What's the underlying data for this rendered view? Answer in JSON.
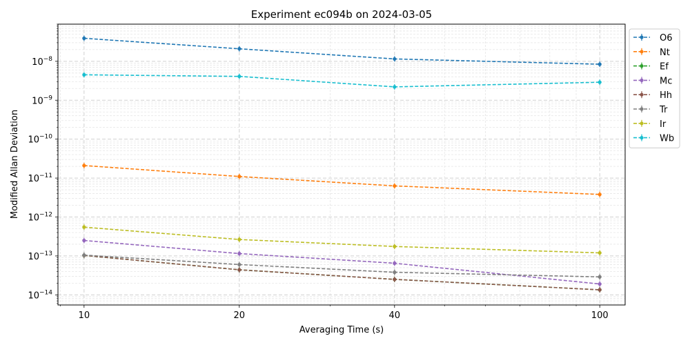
{
  "chart_data": {
    "type": "line",
    "title": "Experiment ec094b on 2024-03-05",
    "xlabel": "Averaging Time (s)",
    "ylabel": "Modified Allan Deviation",
    "x_scale": "log",
    "y_scale": "log",
    "x": [
      10,
      20,
      40,
      100
    ],
    "x_ticks": [
      10,
      20,
      40,
      100
    ],
    "x_tick_labels": [
      "10",
      "20",
      "40",
      "100"
    ],
    "xlim": [
      8.9,
      112
    ],
    "ylim": [
      5.5e-15,
      9e-08
    ],
    "y_ticks": [
      {
        "value": 1e-14,
        "base": "10",
        "exp": "−14"
      },
      {
        "value": 1e-13,
        "base": "10",
        "exp": "−13"
      },
      {
        "value": 1e-12,
        "base": "10",
        "exp": "−12"
      },
      {
        "value": 1e-11,
        "base": "10",
        "exp": "−11"
      },
      {
        "value": 1e-10,
        "base": "10",
        "exp": "−10"
      },
      {
        "value": 1e-09,
        "base": "10",
        "exp": "−9"
      },
      {
        "value": 1e-08,
        "base": "10",
        "exp": "−8"
      }
    ],
    "grid": true,
    "legend_position": "outside-right",
    "series": [
      {
        "name": "O6",
        "color": "#1f77b4",
        "values": [
          3.9e-08,
          2.1e-08,
          1.15e-08,
          8.4e-09
        ]
      },
      {
        "name": "Nt",
        "color": "#ff7f0e",
        "values": [
          2.1e-11,
          1.1e-11,
          6.3e-12,
          3.8e-12
        ]
      },
      {
        "name": "Ef",
        "color": "#2ca02c",
        "values": [
          1.03e-13,
          4.4e-14,
          2.5e-14,
          1.35e-14
        ]
      },
      {
        "name": "Mc",
        "color": "#9467bd",
        "values": [
          2.5e-13,
          1.15e-13,
          6.5e-14,
          1.9e-14
        ]
      },
      {
        "name": "Hh",
        "color": "#8c564b",
        "values": [
          1.03e-13,
          4.4e-14,
          2.5e-14,
          1.35e-14
        ]
      },
      {
        "name": "Tr",
        "color": "#7f7f7f",
        "values": [
          1.05e-13,
          6e-14,
          3.8e-14,
          2.9e-14
        ]
      },
      {
        "name": "Ir",
        "color": "#bcbd22",
        "values": [
          5.5e-13,
          2.65e-13,
          1.75e-13,
          1.2e-13
        ]
      },
      {
        "name": "Wb",
        "color": "#17becf",
        "values": [
          4.5e-09,
          4.1e-09,
          2.2e-09,
          2.9e-09
        ]
      }
    ]
  }
}
